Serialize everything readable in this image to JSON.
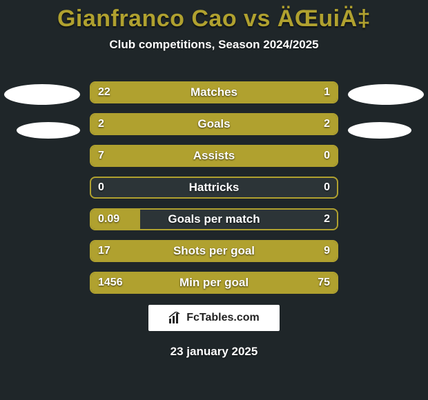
{
  "title": "Gianfranco Cao vs ÄŒuiÄ‡",
  "subtitle": "Club competitions, Season 2024/2025",
  "date": "23 january 2025",
  "logo_text": "FcTables.com",
  "colors": {
    "accent": "#b0a12f",
    "background": "#1f2629",
    "bar_empty": "#2c3437",
    "text": "#ffffff"
  },
  "stats": [
    {
      "label": "Matches",
      "left_val": "22",
      "right_val": "1",
      "left_pct": 78,
      "right_pct": 22
    },
    {
      "label": "Goals",
      "left_val": "2",
      "right_val": "2",
      "left_pct": 10,
      "right_pct": 90
    },
    {
      "label": "Assists",
      "left_val": "7",
      "right_val": "0",
      "left_pct": 100,
      "right_pct": 0
    },
    {
      "label": "Hattricks",
      "left_val": "0",
      "right_val": "0",
      "left_pct": 0,
      "right_pct": 0
    },
    {
      "label": "Goals per match",
      "left_val": "0.09",
      "right_val": "2",
      "left_pct": 20,
      "right_pct": 0
    },
    {
      "label": "Shots per goal",
      "left_val": "17",
      "right_val": "9",
      "left_pct": 100,
      "right_pct": 0
    },
    {
      "label": "Min per goal",
      "left_val": "1456",
      "right_val": "75",
      "left_pct": 78,
      "right_pct": 22
    }
  ]
}
